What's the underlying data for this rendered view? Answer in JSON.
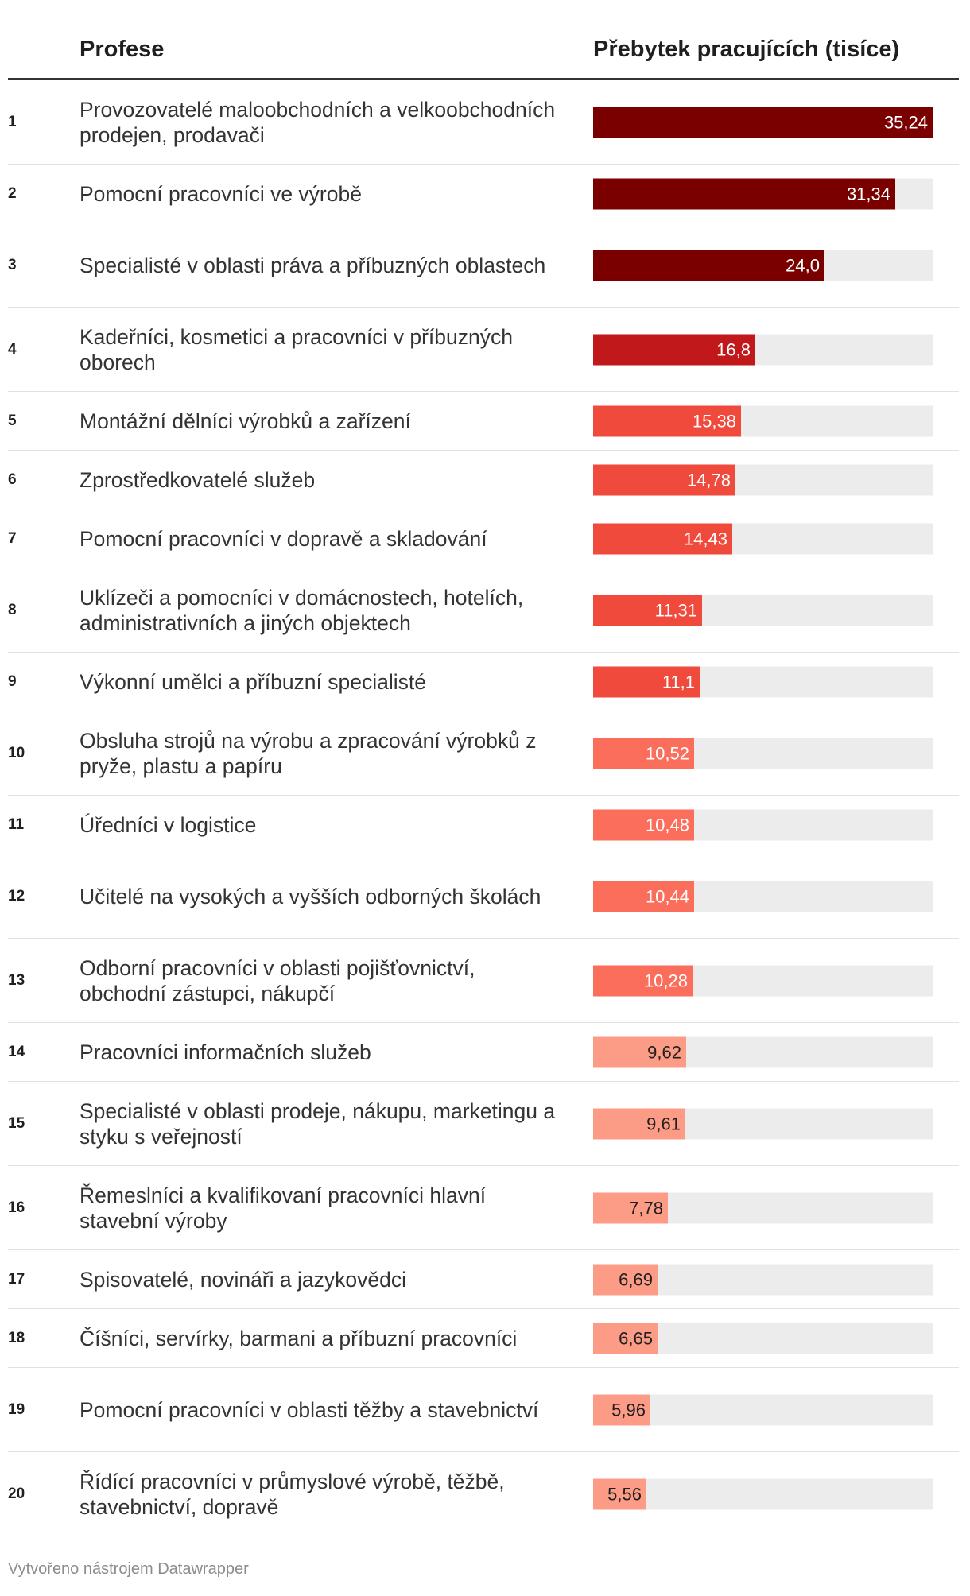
{
  "header": {
    "col_profession": "Profese",
    "col_value": "Přebytek pracujících (tisíce)"
  },
  "footer": "Vytvořeno nástrojem Datawrapper",
  "chart_data": {
    "type": "bar",
    "orientation": "horizontal",
    "title": "",
    "xlabel": "Přebytek pracujících (tisíce)",
    "ylabel": "Profese",
    "xlim": [
      0,
      35.24
    ],
    "categories": [
      "Provozovatelé maloobchodních a velkoobchodních prodejen, prodavači",
      "Pomocní pracovníci ve výrobě",
      "Specialisté v oblasti práva a příbuzných oblastech",
      "Kadeřníci, kosmetici a pracovníci v příbuzných oborech",
      "Montážní dělníci výrobků a zařízení",
      "Zprostředkovatelé služeb",
      "Pomocní pracovníci v dopravě a skladování",
      "Uklízeči a pomocníci v domácnostech, hotelích, administrativních a jiných objektech",
      "Výkonní umělci a příbuzní specialisté",
      "Obsluha strojů na výrobu a zpracování výrobků z pryže, plastu a papíru",
      "Úředníci v logistice",
      "Učitelé na vysokých a vyšších odborných školách",
      "Odborní pracovníci v oblasti pojišťovnictví, obchodní zástupci, nákupčí",
      "Pracovníci informačních služeb",
      "Specialisté v oblasti prodeje, nákupu, marketingu a styku s veřejností",
      "Řemeslníci a kvalifikovaní pracovníci hlavní stavební výroby",
      "Spisovatelé, novináři a jazykovědci",
      "Číšníci, servírky, barmani a příbuzní pracovníci",
      "Pomocní pracovníci v oblasti těžby a stavebnictví",
      "Řídící pracovníci v průmyslové výrobě, těžbě, stavebnictví, dopravě"
    ],
    "ranks": [
      "1",
      "2",
      "3",
      "4",
      "5",
      "6",
      "7",
      "8",
      "9",
      "10",
      "11",
      "12",
      "13",
      "14",
      "15",
      "16",
      "17",
      "18",
      "19",
      "20"
    ],
    "values": [
      35.24,
      31.34,
      24.0,
      16.8,
      15.38,
      14.78,
      14.43,
      11.31,
      11.1,
      10.52,
      10.48,
      10.44,
      10.28,
      9.62,
      9.61,
      7.78,
      6.69,
      6.65,
      5.96,
      5.56
    ],
    "value_labels": [
      "35,24",
      "31,34",
      "24,0",
      "16,8",
      "15,38",
      "14,78",
      "14,43",
      "11,31",
      "11,1",
      "10,52",
      "10,48",
      "10,44",
      "10,28",
      "9,62",
      "9,61",
      "7,78",
      "6,69",
      "6,65",
      "5,96",
      "5,56"
    ],
    "colors": [
      "#7a0000",
      "#7a0000",
      "#7a0000",
      "#c1181c",
      "#f04a3d",
      "#f04a3d",
      "#f04a3d",
      "#f04a3d",
      "#f04a3d",
      "#fb6e5c",
      "#fb6e5c",
      "#fb6e5c",
      "#fb6e5c",
      "#fc9c86",
      "#fc9c86",
      "#fc9c86",
      "#fc9c86",
      "#fc9c86",
      "#fc9c86",
      "#fc9c86"
    ],
    "label_colors": [
      "#ffffff",
      "#ffffff",
      "#ffffff",
      "#ffffff",
      "#ffffff",
      "#ffffff",
      "#ffffff",
      "#ffffff",
      "#ffffff",
      "#ffffff",
      "#ffffff",
      "#ffffff",
      "#ffffff",
      "#1f1f1f",
      "#1f1f1f",
      "#1f1f1f",
      "#1f1f1f",
      "#1f1f1f",
      "#1f1f1f",
      "#1f1f1f"
    ],
    "track_color": "#ececec"
  }
}
